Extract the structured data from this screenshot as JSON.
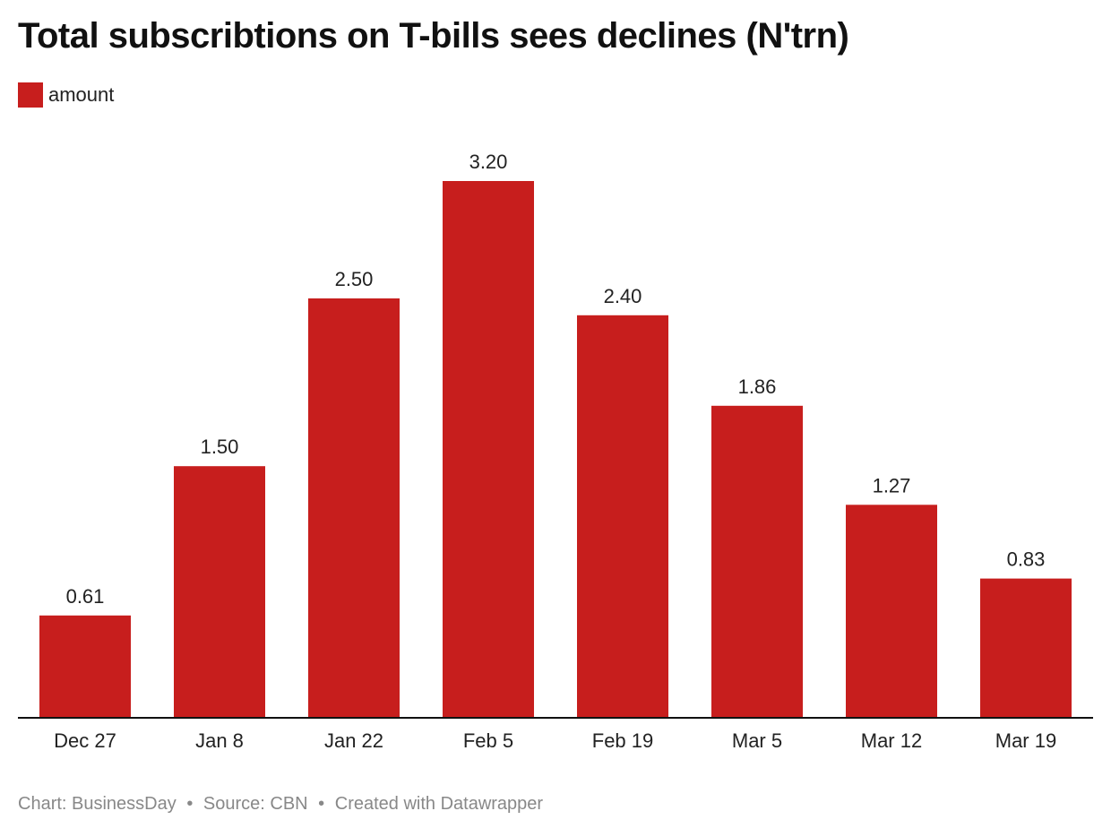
{
  "title": "Total subscribtions on T-bills sees declines (N'trn)",
  "legend": {
    "label": "amount",
    "color": "#c71e1d"
  },
  "footer": {
    "chart_credit": "Chart: BusinessDay",
    "source": "Source: CBN",
    "created_with": "Created with Datawrapper",
    "separator": "•"
  },
  "chart_data": {
    "type": "bar",
    "title": "Total subscribtions on T-bills sees declines (N'trn)",
    "categories": [
      "Dec 27",
      "Jan 8",
      "Jan 22",
      "Feb 5",
      "Feb 19",
      "Mar 5",
      "Mar 12",
      "Mar 19"
    ],
    "series": [
      {
        "name": "amount",
        "color": "#c71e1d",
        "values": [
          0.61,
          1.5,
          2.5,
          3.2,
          2.4,
          1.86,
          1.27,
          0.83
        ],
        "labels": [
          "0.61",
          "1.50",
          "2.50",
          "3.20",
          "2.40",
          "1.86",
          "1.27",
          "0.83"
        ]
      }
    ],
    "xlabel": "",
    "ylabel": "",
    "ylim": [
      0,
      3.2
    ],
    "grid": false,
    "legend_position": "top-left"
  }
}
